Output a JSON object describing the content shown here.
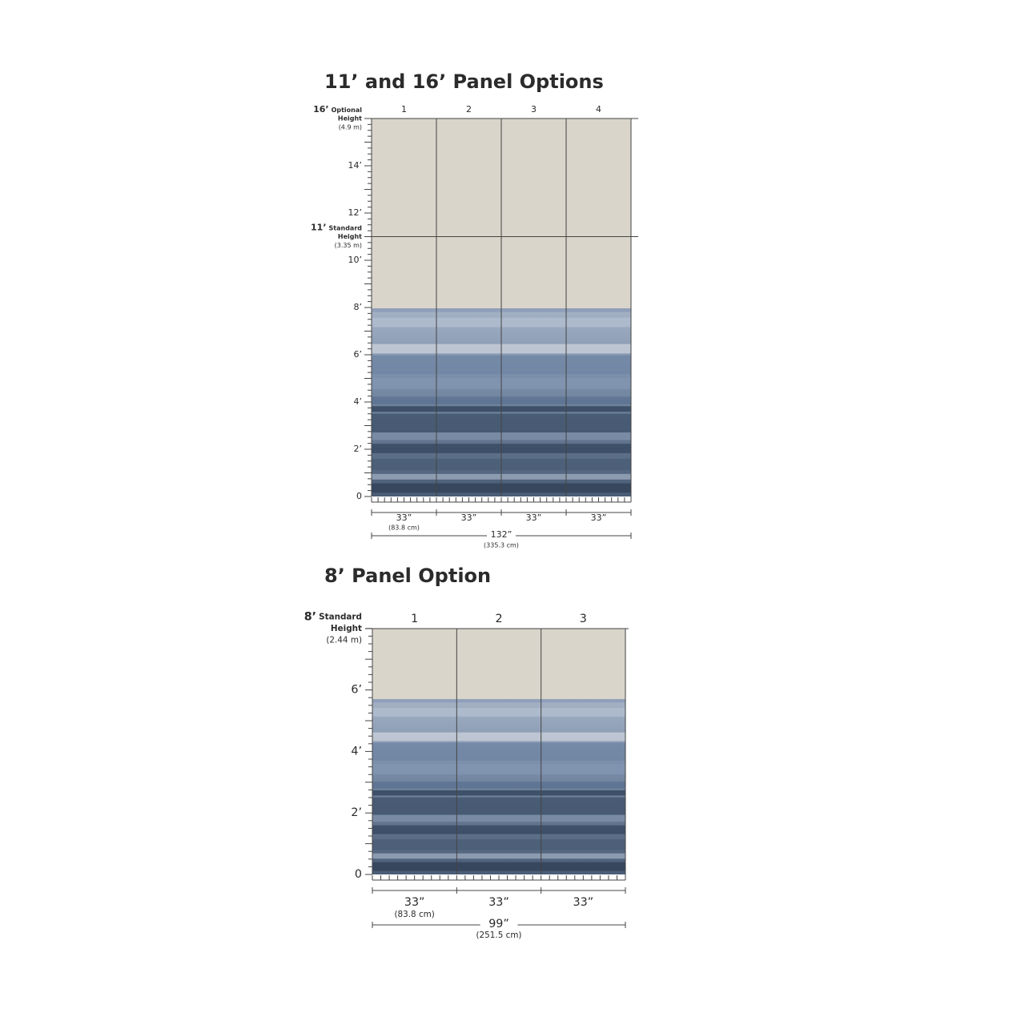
{
  "sections": [
    {
      "title": "11’ and 16’ Panel Options",
      "panels": [
        "1",
        "2",
        "3",
        "4"
      ],
      "heights": [
        {
          "label": "16’",
          "kind": "Optional",
          "word": "Height",
          "metric": "(4.9 m)"
        },
        {
          "label": "11’",
          "kind": "Standard",
          "word": "Height",
          "metric": "(3.35 m)"
        }
      ],
      "ticks": [
        "14’",
        "12’",
        "10’",
        "8’",
        "6’",
        "4’",
        "2’",
        "0"
      ],
      "widths": [
        {
          "inches": "33”",
          "cm": "(83.8 cm)"
        },
        {
          "inches": "33”"
        },
        {
          "inches": "33”"
        },
        {
          "inches": "33”"
        }
      ],
      "total": {
        "inches": "132”",
        "cm": "(335.3 cm)"
      }
    },
    {
      "title": "8’ Panel Option",
      "panels": [
        "1",
        "2",
        "3"
      ],
      "heights": [
        {
          "label": "8’",
          "kind": "Standard",
          "word": "Height",
          "metric": "(2.44 m)"
        }
      ],
      "ticks": [
        "6’",
        "4’",
        "2’",
        "0"
      ],
      "widths": [
        {
          "inches": "33”",
          "cm": "(83.8 cm)"
        },
        {
          "inches": "33”"
        },
        {
          "inches": "33”"
        }
      ],
      "total": {
        "inches": "99”",
        "cm": "(251.5 cm)"
      }
    }
  ]
}
